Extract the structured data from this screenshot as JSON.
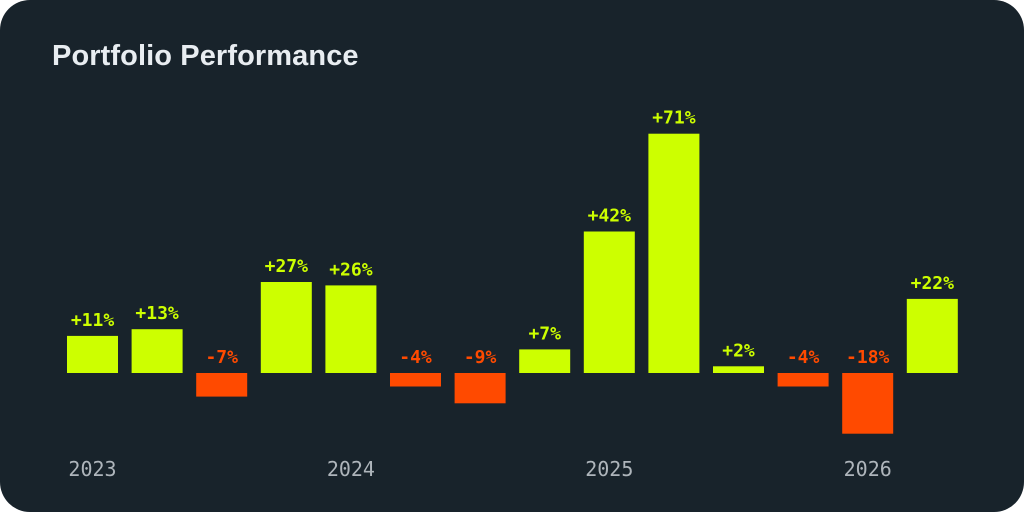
{
  "title": "Portfolio Performance",
  "colors": {
    "background": "#18232b",
    "positive": "#cdff00",
    "negative": "#ff4a00",
    "axis_text": "#aeb5bb"
  },
  "chart_data": {
    "type": "bar",
    "title": "Portfolio Performance",
    "xlabel": "",
    "ylabel": "",
    "unit": "%",
    "values": [
      11,
      13,
      -7,
      27,
      26,
      -4,
      -9,
      7,
      42,
      71,
      2,
      -4,
      -18,
      22
    ],
    "labels": [
      "+11%",
      "+13%",
      "-7%",
      "+27%",
      "+26%",
      "-4%",
      "-9%",
      "+7%",
      "+42%",
      "+71%",
      "+2%",
      "-4%",
      "-18%",
      "+22%"
    ],
    "x_ticks": [
      {
        "label": "2023",
        "bar_index": 0
      },
      {
        "label": "2024",
        "bar_index": 4
      },
      {
        "label": "2025",
        "bar_index": 8
      },
      {
        "label": "2026",
        "bar_index": 12
      }
    ],
    "grid": false,
    "legend": "none"
  }
}
